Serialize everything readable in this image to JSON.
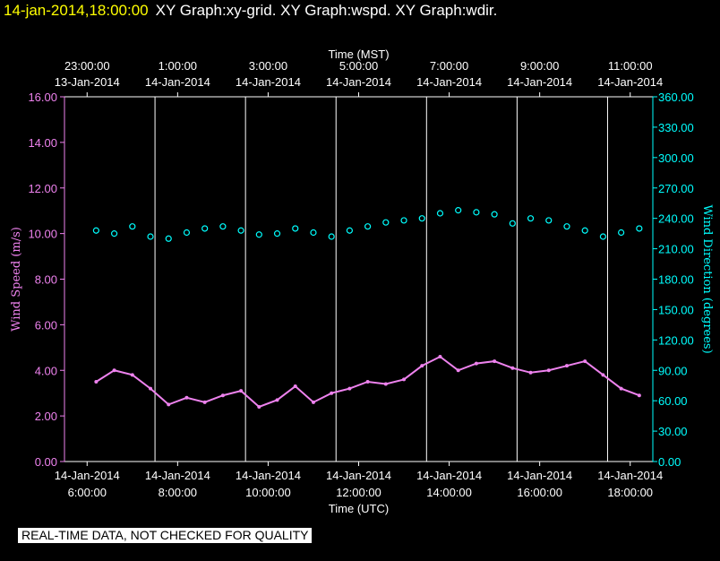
{
  "header": {
    "timestamp": "14-jan-2014,18:00:00",
    "graphs": "XY Graph:xy-grid.  XY Graph:wspd.  XY Graph:wdir."
  },
  "footer": {
    "quality_notice": "REAL-TIME DATA, NOT CHECKED FOR QUALITY"
  },
  "chart_data": {
    "type": "scatter",
    "title": "",
    "x_top_label": "Time (MST)",
    "x_bottom_label": "Time (UTC)",
    "xlim_hours": [
      5.5,
      18.5
    ],
    "x_ticks_utc": [
      {
        "hour": 6,
        "date": "14-Jan-2014",
        "time": "6:00:00"
      },
      {
        "hour": 8,
        "date": "14-Jan-2014",
        "time": "8:00:00"
      },
      {
        "hour": 10,
        "date": "14-Jan-2014",
        "time": "10:00:00"
      },
      {
        "hour": 12,
        "date": "14-Jan-2014",
        "time": "12:00:00"
      },
      {
        "hour": 14,
        "date": "14-Jan-2014",
        "time": "14:00:00"
      },
      {
        "hour": 16,
        "date": "14-Jan-2014",
        "time": "16:00:00"
      },
      {
        "hour": 18,
        "date": "14-Jan-2014",
        "time": "18:00:00"
      }
    ],
    "x_ticks_mst": [
      {
        "hour": 6,
        "time": "23:00:00",
        "date": "13-Jan-2014"
      },
      {
        "hour": 8,
        "time": "1:00:00",
        "date": "14-Jan-2014"
      },
      {
        "hour": 10,
        "time": "3:00:00",
        "date": "14-Jan-2014"
      },
      {
        "hour": 12,
        "time": "5:00:00",
        "date": "14-Jan-2014"
      },
      {
        "hour": 14,
        "time": "7:00:00",
        "date": "14-Jan-2014"
      },
      {
        "hour": 16,
        "time": "9:00:00",
        "date": "14-Jan-2014"
      },
      {
        "hour": 18,
        "time": "11:00:00",
        "date": "14-Jan-2014"
      }
    ],
    "vertical_gridlines_hours": [
      7.5,
      9.5,
      11.5,
      13.5,
      15.5,
      17.5
    ],
    "y_left": {
      "label": "Wind Speed (m/s)",
      "ylim": [
        0,
        16
      ],
      "ticks": [
        "0.00",
        "2.00",
        "4.00",
        "6.00",
        "8.00",
        "10.00",
        "12.00",
        "14.00",
        "16.00"
      ],
      "color": "#ee82ee"
    },
    "y_right": {
      "label": "Wind Direction (degrees)",
      "ylim": [
        0,
        360
      ],
      "ticks": [
        "0.00",
        "30.00",
        "60.00",
        "90.00",
        "120.00",
        "150.00",
        "180.00",
        "210.00",
        "240.00",
        "270.00",
        "300.00",
        "330.00",
        "360.00"
      ],
      "color": "#00ffff"
    },
    "series": [
      {
        "axis": "left",
        "style": "line",
        "color": "#ee82ee",
        "x": [
          6.2,
          6.6,
          7.0,
          7.4,
          7.8,
          8.2,
          8.6,
          9.0,
          9.4,
          9.8,
          10.2,
          10.6,
          11.0,
          11.4,
          11.8,
          12.2,
          12.6,
          13.0,
          13.4,
          13.8,
          14.2,
          14.6,
          15.0,
          15.4,
          15.8,
          16.2,
          16.6,
          17.0,
          17.4,
          17.8,
          18.2
        ],
        "values": [
          3.5,
          4.0,
          3.8,
          3.2,
          2.5,
          2.8,
          2.6,
          2.9,
          3.1,
          2.4,
          2.7,
          3.3,
          2.6,
          3.0,
          3.2,
          3.5,
          3.4,
          3.6,
          4.2,
          4.6,
          4.0,
          4.3,
          4.4,
          4.1,
          3.9,
          4.0,
          4.2,
          4.4,
          3.8,
          3.2,
          2.9
        ]
      },
      {
        "axis": "right",
        "style": "circles",
        "color": "#00ffff",
        "x": [
          6.2,
          6.6,
          7.0,
          7.4,
          7.8,
          8.2,
          8.6,
          9.0,
          9.4,
          9.8,
          10.2,
          10.6,
          11.0,
          11.4,
          11.8,
          12.2,
          12.6,
          13.0,
          13.4,
          13.8,
          14.2,
          14.6,
          15.0,
          15.4,
          15.8,
          16.2,
          16.6,
          17.0,
          17.4,
          17.8,
          18.2
        ],
        "values": [
          228,
          225,
          232,
          222,
          220,
          226,
          230,
          232,
          228,
          224,
          225,
          230,
          226,
          222,
          228,
          232,
          236,
          238,
          240,
          245,
          248,
          246,
          244,
          235,
          240,
          238,
          232,
          228,
          222,
          226,
          230
        ]
      }
    ]
  }
}
